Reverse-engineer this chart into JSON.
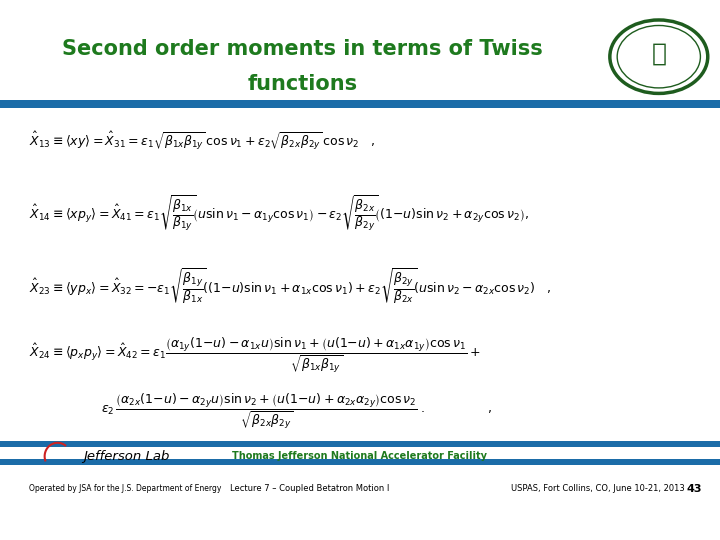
{
  "title_line1": "Second order moments in terms of Twiss",
  "title_line2": "functions",
  "title_color": "#1E7A1E",
  "title_fontsize": 15,
  "bg_color": "#FFFFFF",
  "header_bar_color": "#1B6CA8",
  "footer_bar_color": "#1B6CA8",
  "footer_jlab_text": "Thomas Jefferson National Accelerator Facility",
  "footer_jlab_color": "#1E7A1E",
  "footer_lecture": "Lecture 7 – Coupled Betatron Motion I",
  "footer_conf": "USPAS, Fort Collins, CO, June 10-21, 2013",
  "footer_page": "43",
  "eq_color": "#000000",
  "eq_fontsize": 9.0,
  "logo_color": "#1E5C1E"
}
